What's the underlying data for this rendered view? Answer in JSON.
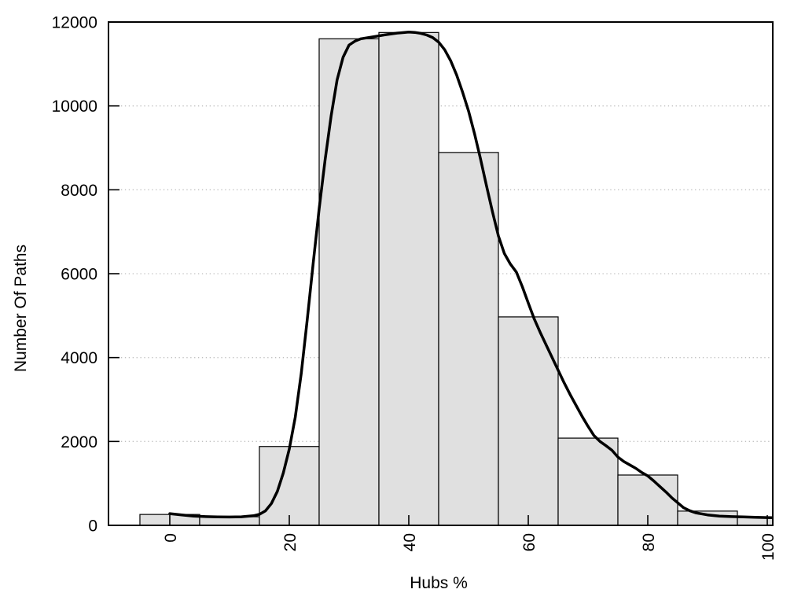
{
  "chart_data": {
    "type": "histogram_with_density_line",
    "title": "",
    "xlabel": "Hubs %",
    "ylabel": "Number Of Paths",
    "xlim": [
      -10.26,
      100.92
    ],
    "ylim": [
      0,
      12000
    ],
    "x_ticks": [
      0,
      20,
      40,
      60,
      80,
      100
    ],
    "y_ticks": [
      0,
      2000,
      4000,
      6000,
      8000,
      10000,
      12000
    ],
    "grid": "horizontal-dotted",
    "legend": "none",
    "bin_width": 10,
    "bars": {
      "centers": [
        0,
        10,
        20,
        30,
        40,
        50,
        60,
        70,
        80,
        90,
        100
      ],
      "values": [
        260,
        205,
        1880,
        11600,
        11750,
        8890,
        4970,
        2080,
        1200,
        340,
        190
      ]
    },
    "curve": {
      "name": "density-line",
      "points": [
        [
          0,
          280
        ],
        [
          2,
          248
        ],
        [
          4,
          222
        ],
        [
          6,
          208
        ],
        [
          8,
          200
        ],
        [
          10,
          198
        ],
        [
          12,
          204
        ],
        [
          14,
          228
        ],
        [
          15,
          262
        ],
        [
          16,
          345
        ],
        [
          17,
          520
        ],
        [
          18,
          810
        ],
        [
          19,
          1250
        ],
        [
          20,
          1820
        ],
        [
          21,
          2580
        ],
        [
          22,
          3620
        ],
        [
          23,
          4900
        ],
        [
          24,
          6250
        ],
        [
          25,
          7550
        ],
        [
          26,
          8720
        ],
        [
          27,
          9760
        ],
        [
          28,
          10620
        ],
        [
          29,
          11160
        ],
        [
          30,
          11450
        ],
        [
          31,
          11545
        ],
        [
          32,
          11600
        ],
        [
          34,
          11645
        ],
        [
          36,
          11695
        ],
        [
          38,
          11735
        ],
        [
          40,
          11760
        ],
        [
          41,
          11752
        ],
        [
          42,
          11730
        ],
        [
          43,
          11690
        ],
        [
          44,
          11630
        ],
        [
          45,
          11520
        ],
        [
          46,
          11340
        ],
        [
          47,
          11080
        ],
        [
          48,
          10740
        ],
        [
          49,
          10330
        ],
        [
          50,
          9880
        ],
        [
          51,
          9340
        ],
        [
          52,
          8740
        ],
        [
          53,
          8100
        ],
        [
          54,
          7480
        ],
        [
          55,
          6900
        ],
        [
          56,
          6480
        ],
        [
          57,
          6230
        ],
        [
          58,
          6040
        ],
        [
          59,
          5690
        ],
        [
          60,
          5300
        ],
        [
          61,
          4920
        ],
        [
          62,
          4600
        ],
        [
          63,
          4300
        ],
        [
          64,
          4000
        ],
        [
          65,
          3700
        ],
        [
          66,
          3400
        ],
        [
          67,
          3120
        ],
        [
          68,
          2860
        ],
        [
          69,
          2600
        ],
        [
          70,
          2360
        ],
        [
          71,
          2140
        ],
        [
          72,
          2000
        ],
        [
          73,
          1900
        ],
        [
          74,
          1790
        ],
        [
          75,
          1630
        ],
        [
          76,
          1520
        ],
        [
          77,
          1440
        ],
        [
          78,
          1360
        ],
        [
          79,
          1260
        ],
        [
          80,
          1180
        ],
        [
          81,
          1060
        ],
        [
          82,
          930
        ],
        [
          83,
          800
        ],
        [
          84,
          660
        ],
        [
          85,
          540
        ],
        [
          86,
          420
        ],
        [
          87,
          350
        ],
        [
          88,
          300
        ],
        [
          90,
          250
        ],
        [
          92,
          222
        ],
        [
          94,
          208
        ],
        [
          96,
          200
        ],
        [
          98,
          192
        ],
        [
          100,
          186
        ],
        [
          101,
          183
        ]
      ]
    },
    "colors": {
      "background": "#ffffff",
      "bar_fill": "#e0e0e0",
      "bar_border": "#000000",
      "curve": "#000000",
      "grid": "#bfbfbf",
      "axis": "#000000",
      "text": "#000000"
    }
  }
}
